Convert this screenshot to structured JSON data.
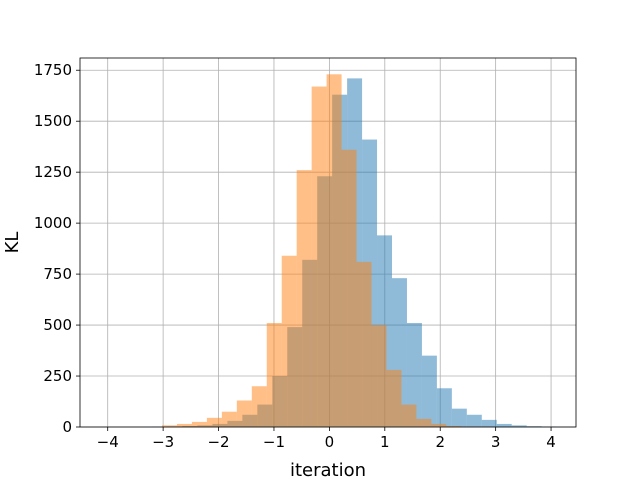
{
  "chart_data": {
    "type": "bar",
    "title": "",
    "xlabel": "iteration",
    "ylabel": "KL",
    "xlim": [
      -4.5,
      4.45
    ],
    "ylim": [
      0,
      1810
    ],
    "xticks": [
      -4,
      -3,
      -2,
      -1,
      0,
      1,
      2,
      3,
      4
    ],
    "xtick_labels": [
      "−4",
      "−3",
      "−2",
      "−1",
      "0",
      "1",
      "2",
      "3",
      "4"
    ],
    "yticks": [
      0,
      250,
      500,
      750,
      1000,
      1250,
      1500,
      1750
    ],
    "ytick_labels": [
      "0",
      "250",
      "500",
      "750",
      "1000",
      "1250",
      "1500",
      "1750"
    ],
    "grid": true,
    "legend": "none",
    "series": [
      {
        "color": "#1f77b4",
        "opacity": 0.5,
        "bin_edges": [
          -4.0,
          -3.73,
          -3.46,
          -3.19,
          -2.92,
          -2.65,
          -2.38,
          -2.11,
          -1.84,
          -1.57,
          -1.3,
          -1.03,
          -0.76,
          -0.49,
          -0.22,
          0.05,
          0.32,
          0.59,
          0.86,
          1.13,
          1.4,
          1.67,
          1.94,
          2.21,
          2.48,
          2.75,
          3.02,
          3.29,
          3.56,
          3.83,
          4.1
        ],
        "values": [
          1,
          1,
          1,
          2,
          3,
          5,
          8,
          15,
          30,
          60,
          110,
          250,
          490,
          820,
          1230,
          1630,
          1710,
          1410,
          940,
          730,
          510,
          350,
          190,
          90,
          60,
          35,
          15,
          8,
          4,
          2
        ]
      },
      {
        "color": "#ff7f0e",
        "opacity": 0.5,
        "bin_edges": [
          -3.02,
          -2.75,
          -2.48,
          -2.21,
          -1.94,
          -1.67,
          -1.4,
          -1.13,
          -0.86,
          -0.59,
          -0.32,
          -0.05,
          0.22,
          0.49,
          0.76,
          1.03,
          1.3,
          1.57,
          1.84,
          2.11,
          2.38,
          2.65,
          2.92
        ],
        "values": [
          8,
          15,
          25,
          45,
          75,
          130,
          200,
          510,
          840,
          1260,
          1670,
          1730,
          1360,
          810,
          500,
          280,
          110,
          40,
          15,
          5,
          2,
          1
        ]
      }
    ]
  }
}
